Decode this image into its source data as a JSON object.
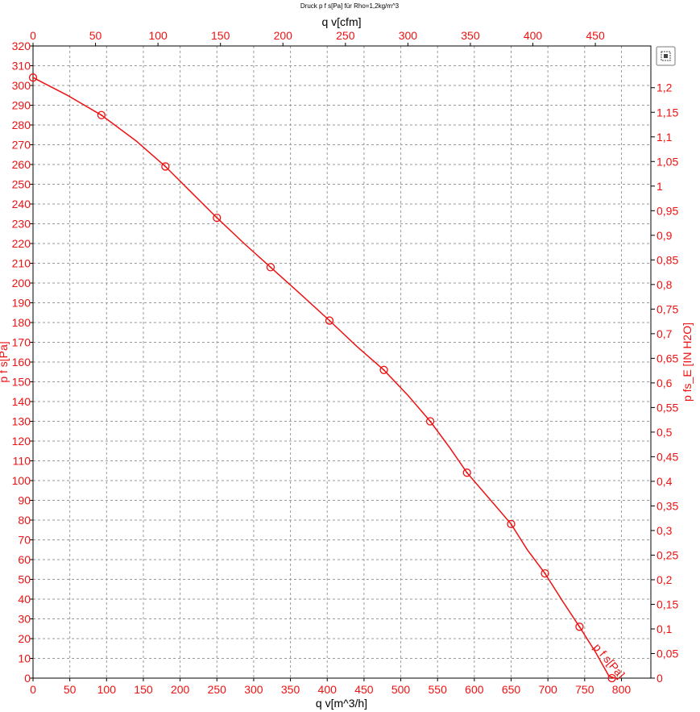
{
  "chart_data": {
    "type": "line",
    "title": "Druck p f s[Pa] für Rho=1,2kg/m^3",
    "xlabel": "q v[m^3/h]",
    "x2label": "q v[cfm]",
    "ylabel": "p f s[Pa]",
    "y2label": "p fs_E [IN H2O]",
    "xlim": [
      0,
      840
    ],
    "ylim": [
      0,
      320
    ],
    "x_ticks": [
      0,
      50,
      100,
      150,
      200,
      250,
      300,
      350,
      400,
      450,
      500,
      550,
      600,
      650,
      700,
      750,
      800
    ],
    "y_ticks": [
      0,
      10,
      20,
      30,
      40,
      50,
      60,
      70,
      80,
      90,
      100,
      110,
      120,
      130,
      140,
      150,
      160,
      170,
      180,
      190,
      200,
      210,
      220,
      230,
      240,
      250,
      260,
      270,
      280,
      290,
      300,
      310,
      320
    ],
    "x2_ticks": [
      0,
      50,
      100,
      150,
      200,
      250,
      300,
      350,
      400,
      450
    ],
    "x2_per_x": 0.5886,
    "y2_ticks": [
      "0",
      "0,05",
      "0,1",
      "0,15",
      "0,2",
      "0,25",
      "0,3",
      "0,35",
      "0,4",
      "0,45",
      "0,5",
      "0,55",
      "0,6",
      "0,65",
      "0,7",
      "0,75",
      "0,8",
      "0,85",
      "0,9",
      "0,95",
      "1",
      "1,05",
      "1,1",
      "1,15",
      "1,2"
    ],
    "y2_per_y": 0.004015,
    "grid": true,
    "series": [
      {
        "name": "p f s[Pa]",
        "color": "#ee1111",
        "x": [
          0,
          47,
          93,
          140,
          180,
          215,
          250,
          287,
          323,
          362,
          403,
          440,
          477,
          510,
          540,
          566,
          590,
          620,
          650,
          672,
          696,
          720,
          743,
          765,
          783,
          791
        ],
        "y": [
          304,
          295,
          285,
          272,
          259,
          246,
          233,
          220,
          208,
          195,
          181,
          168,
          156,
          143,
          130,
          117,
          104,
          91,
          78,
          65,
          53,
          39,
          26,
          13,
          1,
          0
        ],
        "markers_x": [
          0,
          93,
          180,
          250,
          323,
          403,
          477,
          540,
          590,
          650,
          696,
          743,
          787
        ],
        "markers_y": [
          304,
          285,
          259,
          233,
          208,
          181,
          156,
          130,
          104,
          78,
          53,
          26,
          0
        ]
      }
    ],
    "annotations": [
      "p f s[Pa]"
    ]
  },
  "toolbar": {
    "zoom_icon": "zoom-fit-icon"
  }
}
